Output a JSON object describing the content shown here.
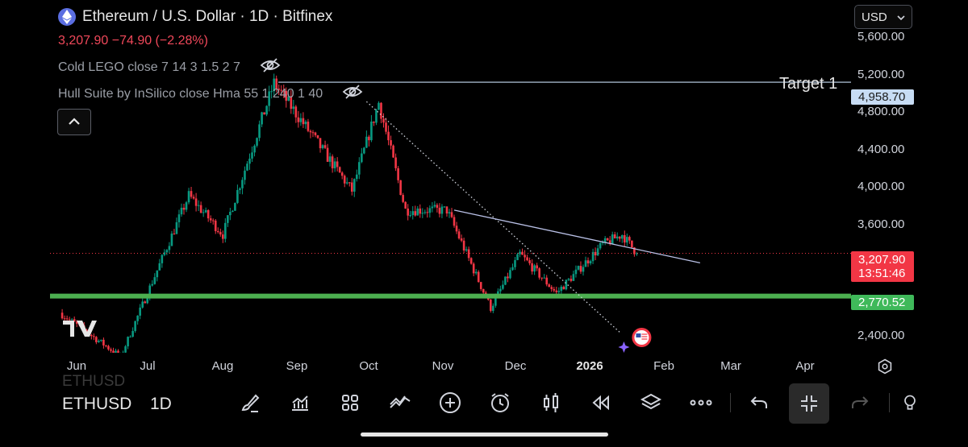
{
  "header": {
    "title": "Ethereum / U.S. Dollar · 1D · Bitfinex",
    "price_line": "3,207.90 −74.90 (−2.28%)",
    "indicator1": "Cold LEGO close 7 14 3 1.5 2 7",
    "indicator2": "Hull Suite by InSilico close Hma 55 1 240 1 40",
    "currency": "USD"
  },
  "annotations": {
    "target_label": "Target 1"
  },
  "price_axis": {
    "ticks": [
      "5,600.00",
      "5,200.00",
      "4,800.00",
      "4,400.00",
      "4,000.00",
      "3,600.00",
      "2,400.00"
    ],
    "target_badge": "4,958.70",
    "current_price": "3,207.90",
    "countdown": "13:51:46",
    "support_badge": "2,770.52"
  },
  "time_axis": {
    "ticks": [
      "Jun",
      "Jul",
      "Aug",
      "Sep",
      "Oct",
      "Nov",
      "Dec",
      "2026",
      "Feb",
      "Mar",
      "Apr"
    ]
  },
  "toolbar": {
    "symbol": "ETHUSD",
    "interval": "1D",
    "ghost_symbol": "ETHUSD",
    "icons": [
      "brush-icon",
      "indicators-icon",
      "layout-grid-icon",
      "compare-icon",
      "add-icon",
      "alert-clock-icon",
      "candles-icon",
      "replay-icon",
      "layers-icon",
      "more-icon",
      "undo-icon",
      "exit-fullscreen-icon",
      "redo-icon",
      "idea-icon"
    ]
  },
  "colors": {
    "up": "#089981",
    "down": "#f23645",
    "support": "#4caf50",
    "target_line": "#c7dcf4",
    "background": "#000000"
  },
  "chart_data": {
    "type": "candlestick",
    "symbol": "ETHUSD",
    "exchange": "Bitfinex",
    "timeframe": "1D",
    "last_price": 3207.9,
    "change": -74.9,
    "change_pct": -2.28,
    "horizontal_levels": [
      {
        "label": "Target 1",
        "price": 4958.7
      },
      {
        "label": "",
        "price": 2770.52
      },
      {
        "label": "",
        "price": 3207.9
      }
    ],
    "trendlines": [
      {
        "from": [
          "2025-10-01",
          4760
        ],
        "to": [
          "2026-01-13",
          2400
        ],
        "style": "dotted"
      },
      {
        "from": [
          "2025-11-06",
          3650
        ],
        "to": [
          "2026-02-15",
          3110
        ],
        "style": "solid"
      }
    ],
    "swings": [
      {
        "date": "2025-05-28",
        "price": 2600
      },
      {
        "date": "2025-06-22",
        "price": 2150
      },
      {
        "date": "2025-07-20",
        "price": 3800
      },
      {
        "date": "2025-08-03",
        "price": 3400
      },
      {
        "date": "2025-08-24",
        "price": 4950
      },
      {
        "date": "2025-09-25",
        "price": 3850
      },
      {
        "date": "2025-10-06",
        "price": 4750
      },
      {
        "date": "2025-10-17",
        "price": 3650
      },
      {
        "date": "2025-11-03",
        "price": 3650
      },
      {
        "date": "2025-11-21",
        "price": 2650
      },
      {
        "date": "2025-12-03",
        "price": 3200
      },
      {
        "date": "2025-12-18",
        "price": 2800
      },
      {
        "date": "2026-01-06",
        "price": 3300
      },
      {
        "date": "2026-01-14",
        "price": 3400
      },
      {
        "date": "2026-01-20",
        "price": 3207.9
      }
    ],
    "ylim": [
      2190,
      5800
    ],
    "xlim": [
      "2025-05-24",
      "2026-04-18"
    ]
  }
}
